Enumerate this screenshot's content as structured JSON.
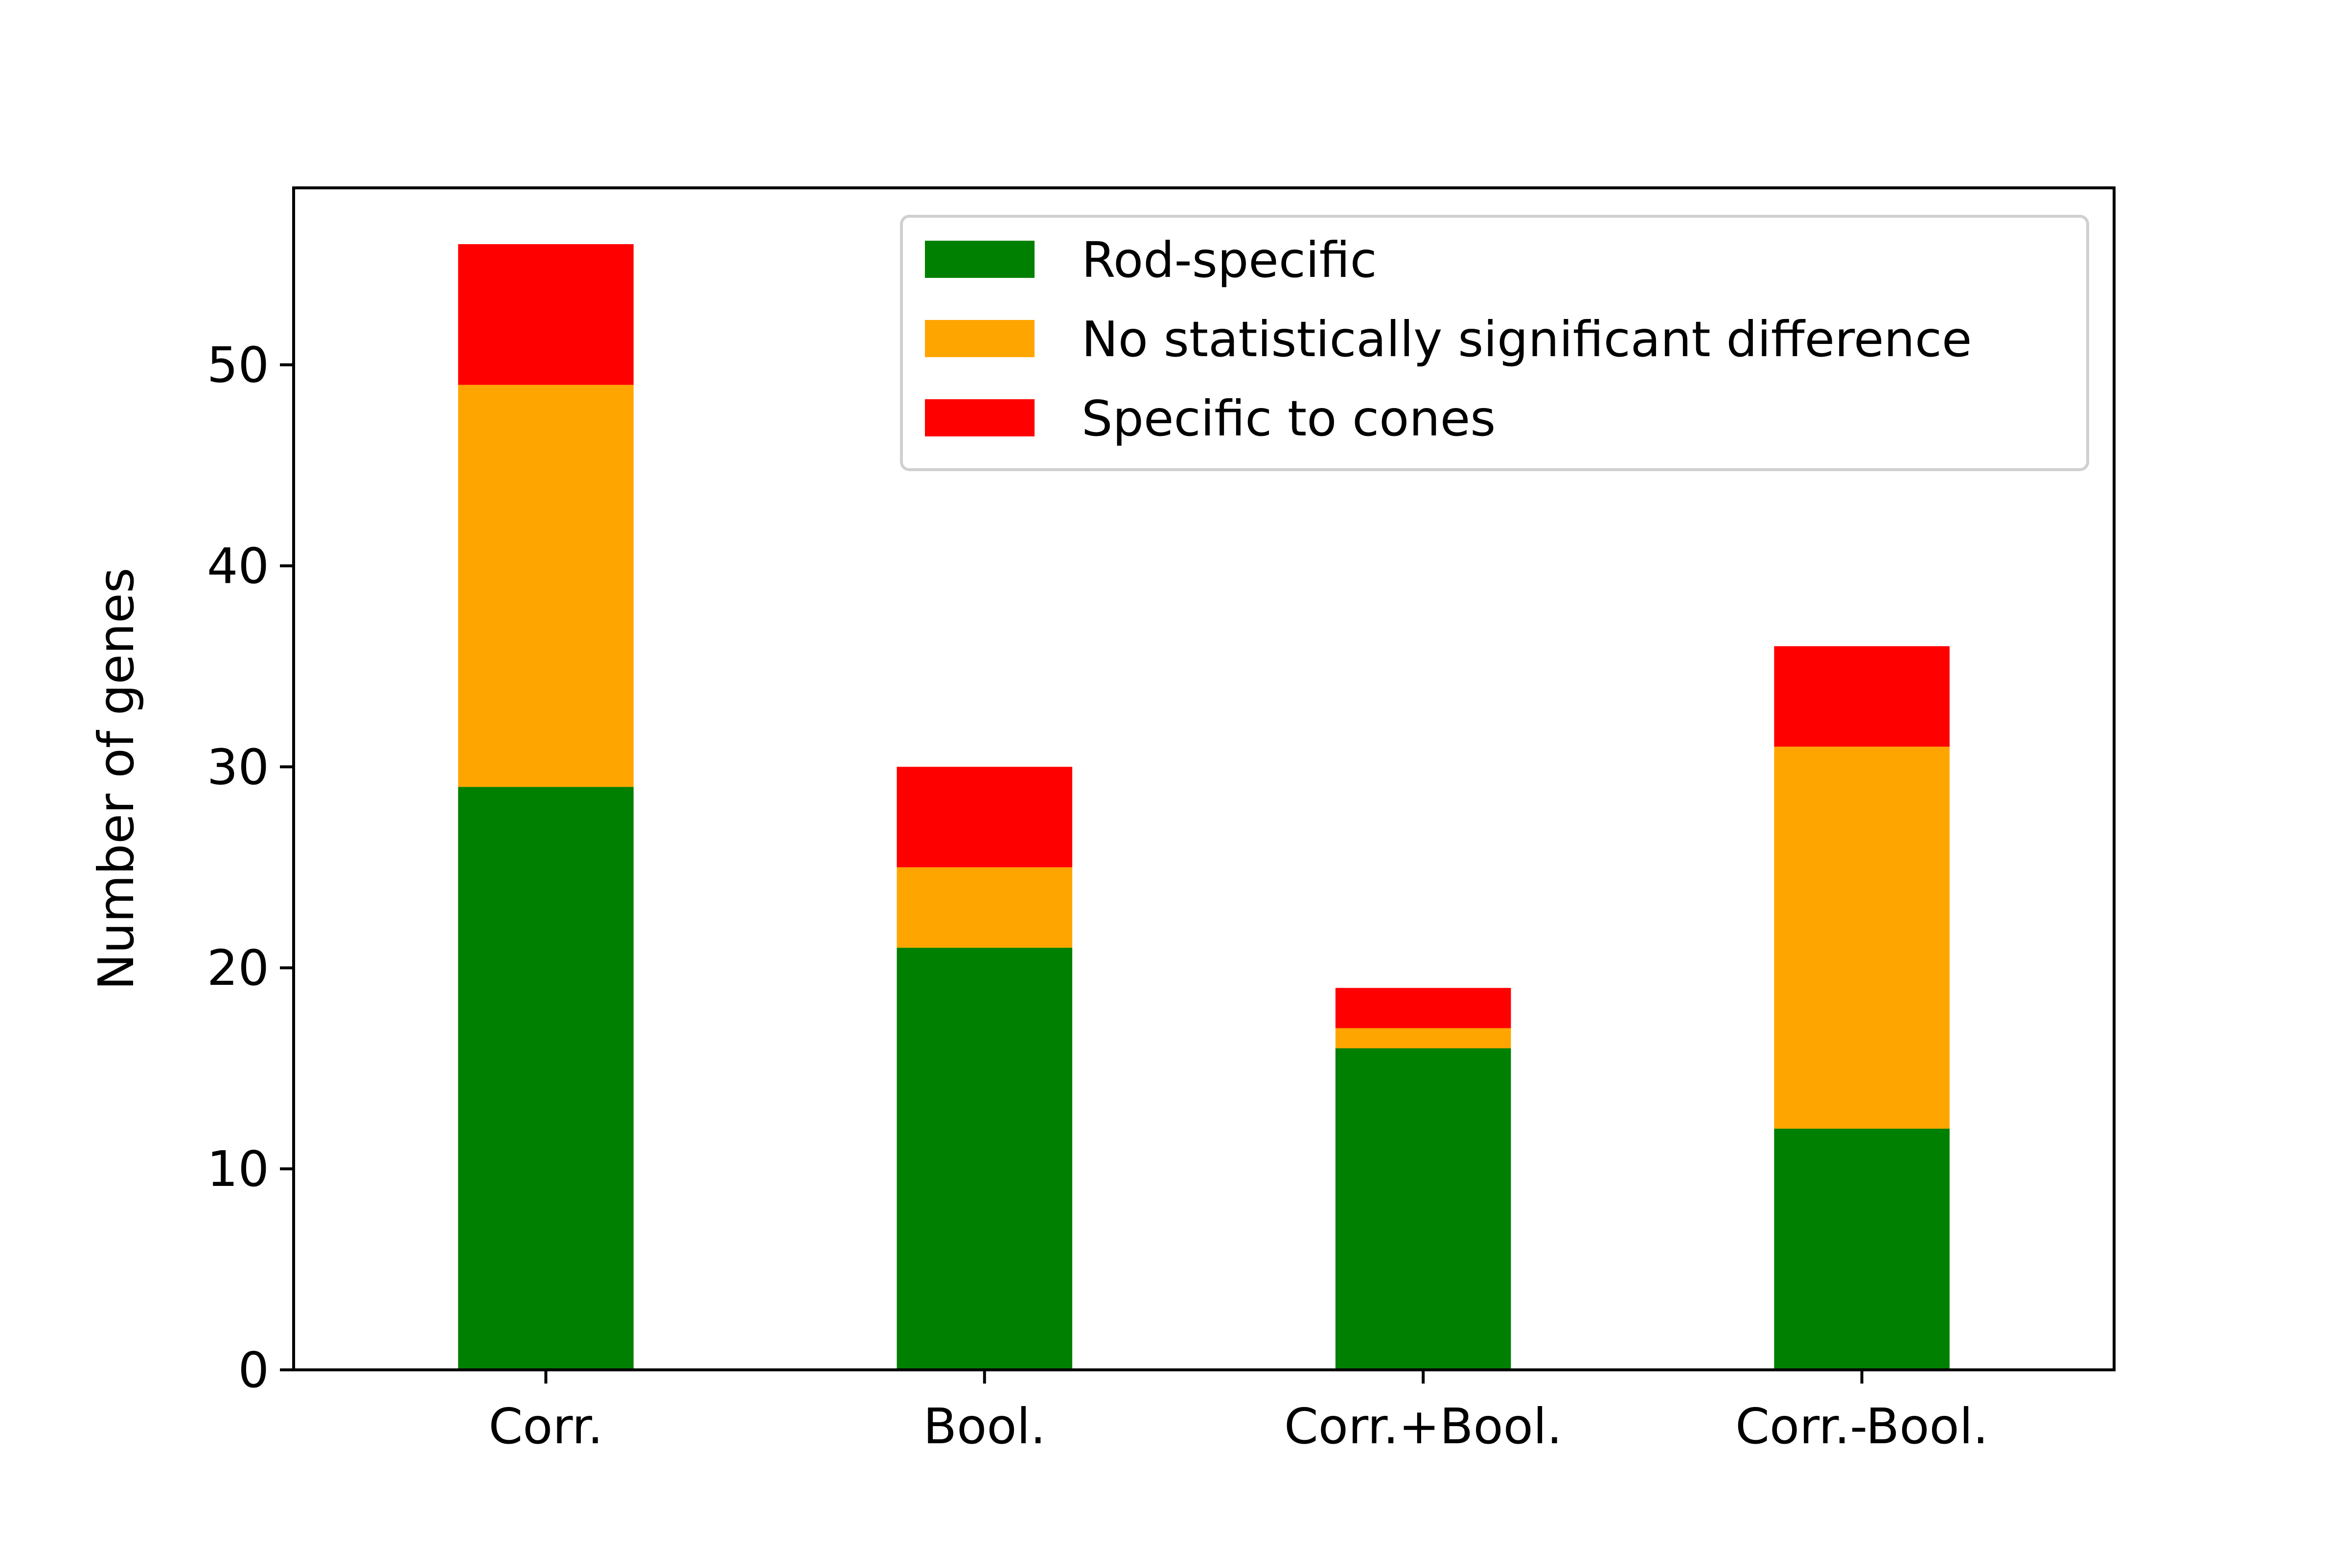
{
  "chart_data": {
    "type": "bar",
    "stacked": true,
    "categories": [
      "Corr.",
      "Bool.",
      "Corr.+Bool.",
      "Corr.-Bool."
    ],
    "series": [
      {
        "name": "Rod-specific",
        "color": "#008000",
        "values": [
          29,
          21,
          16,
          12
        ]
      },
      {
        "name": "No statistically significant difference",
        "color": "#ffa500",
        "values": [
          20,
          4,
          1,
          19
        ]
      },
      {
        "name": "Specific to cones",
        "color": "#ff0000",
        "values": [
          7,
          5,
          2,
          5
        ]
      }
    ],
    "ylabel": "Number of genes",
    "ylim": [
      0,
      58.8
    ],
    "yticks": [
      0,
      10,
      20,
      30,
      40,
      50
    ],
    "grid": false,
    "legend_position": "top-right"
  }
}
